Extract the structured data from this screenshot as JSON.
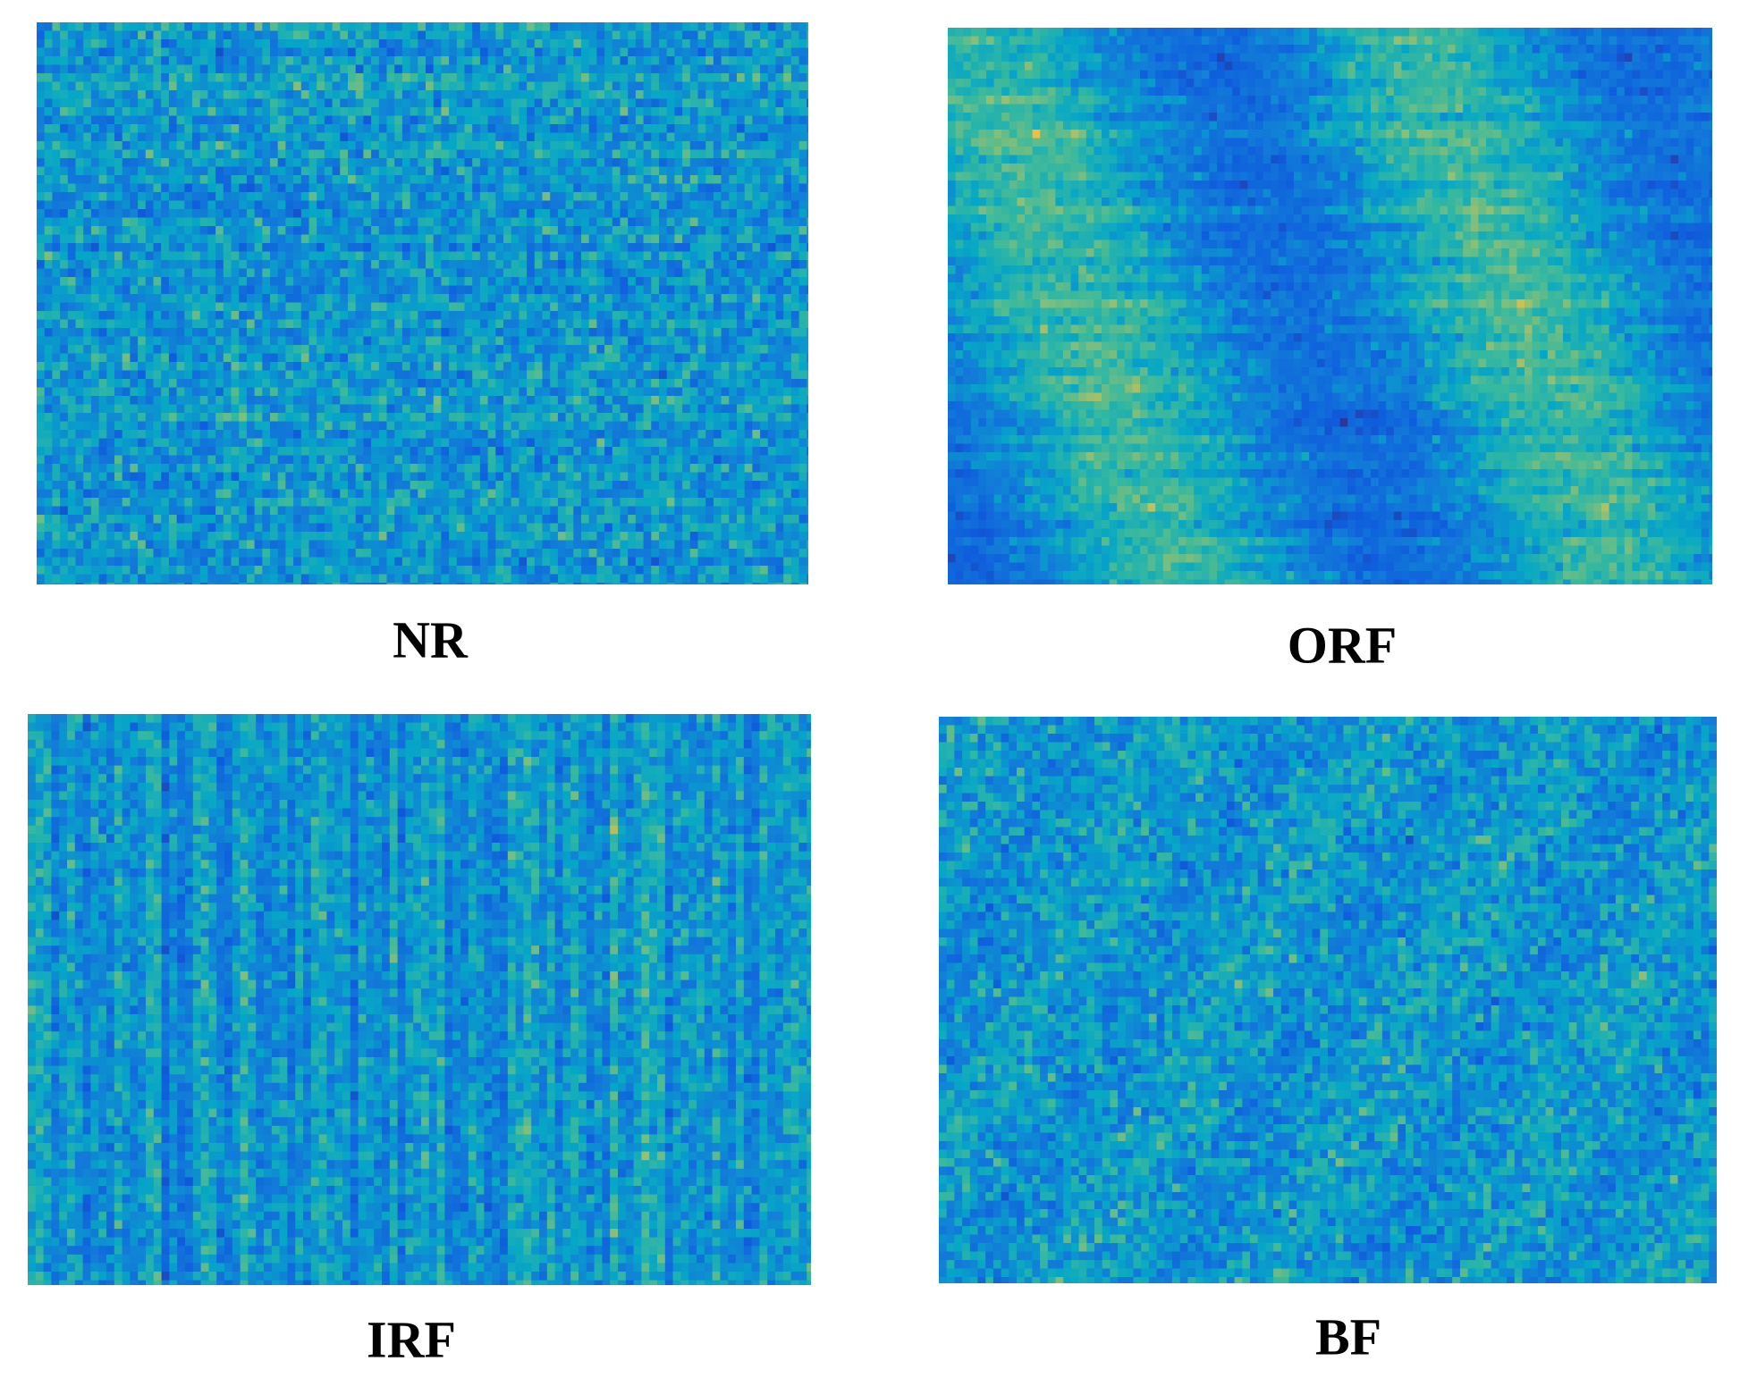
{
  "panels": [
    {
      "label": "NR"
    },
    {
      "label": "ORF"
    },
    {
      "label": "IRF"
    },
    {
      "label": "BF"
    }
  ]
}
